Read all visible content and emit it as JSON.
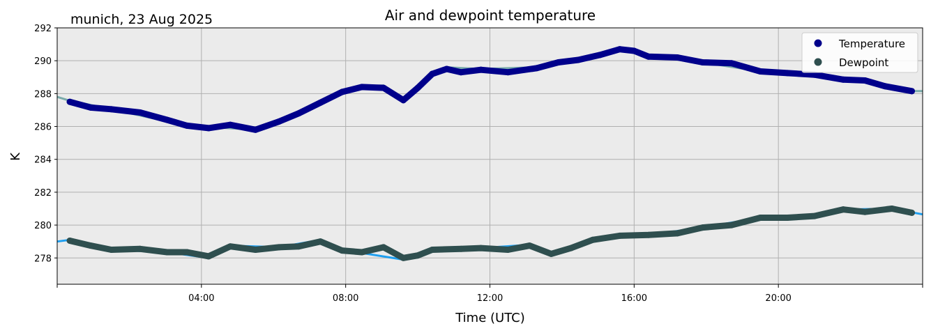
{
  "chart_data": {
    "type": "line",
    "title": "Air and dewpoint temperature",
    "subtitle": "munich, 23 Aug 2025",
    "xlabel": "Time (UTC)",
    "ylabel": "K",
    "xlim_hours": [
      0,
      24
    ],
    "ylim": [
      276.4,
      292
    ],
    "yticks": [
      278,
      280,
      282,
      284,
      286,
      288,
      290,
      292
    ],
    "xticks": [
      {
        "h": 4,
        "label": "04:00"
      },
      {
        "h": 8,
        "label": "08:00"
      },
      {
        "h": 12,
        "label": "12:00"
      },
      {
        "h": 16,
        "label": "16:00"
      },
      {
        "h": 20,
        "label": "20:00"
      }
    ],
    "grid": true,
    "background": "#ebebeb",
    "legend": {
      "placement": "top-right",
      "entries": [
        "Temperature",
        "Dewpoint"
      ]
    },
    "series": [
      {
        "name": "Temperature",
        "style": "dots",
        "color": "#00008b",
        "x": [
          0.35,
          0.93,
          1.5,
          2.3,
          3.05,
          3.6,
          4.2,
          4.8,
          5.5,
          6.15,
          6.7,
          7.3,
          7.9,
          8.45,
          9.05,
          9.6,
          10.0,
          10.4,
          10.8,
          11.2,
          11.75,
          12.5,
          13.3,
          13.9,
          14.45,
          15.05,
          15.6,
          16.0,
          16.4,
          17.2,
          17.9,
          18.7,
          19.5,
          20.25,
          21.0,
          21.8,
          22.4,
          22.95,
          23.7
        ],
        "y": [
          287.5,
          287.15,
          287.05,
          286.85,
          286.4,
          286.05,
          285.9,
          286.1,
          285.8,
          286.3,
          286.8,
          287.45,
          288.1,
          288.4,
          288.35,
          287.6,
          288.35,
          289.2,
          289.5,
          289.3,
          289.45,
          289.3,
          289.55,
          289.9,
          290.05,
          290.35,
          290.7,
          290.6,
          290.25,
          290.2,
          289.9,
          289.85,
          289.35,
          289.25,
          289.15,
          288.85,
          288.8,
          288.45,
          288.15
        ]
      },
      {
        "name": "Dewpoint",
        "style": "dots",
        "color": "#2f4f4f",
        "x": [
          0.35,
          0.93,
          1.5,
          2.3,
          3.05,
          3.6,
          4.2,
          4.8,
          5.5,
          6.15,
          6.7,
          7.3,
          7.9,
          8.45,
          9.05,
          9.6,
          10.0,
          10.4,
          11.2,
          11.75,
          12.5,
          13.1,
          13.7,
          14.25,
          14.85,
          15.6,
          16.4,
          17.2,
          17.9,
          18.7,
          19.5,
          20.25,
          21.0,
          21.8,
          22.4,
          23.15,
          23.7
        ],
        "y": [
          279.05,
          278.75,
          278.5,
          278.55,
          278.35,
          278.35,
          278.1,
          278.7,
          278.5,
          278.65,
          278.7,
          279.0,
          278.45,
          278.35,
          278.65,
          278.0,
          278.15,
          278.5,
          278.55,
          278.6,
          278.5,
          278.75,
          278.25,
          278.6,
          279.1,
          279.35,
          279.4,
          279.5,
          279.85,
          280.0,
          280.45,
          280.45,
          280.55,
          280.95,
          280.8,
          281.0,
          280.75
        ]
      },
      {
        "style": "raw-line",
        "color": "#7aabab",
        "x": [
          0,
          0.3,
          1.5,
          3.6,
          5.5,
          7.3,
          8.45,
          9.05,
          9.6,
          10.0,
          10.4,
          10.8,
          11.75,
          13.3,
          14.45,
          15.6,
          16.4,
          17.9,
          19.5,
          21.0,
          22.4,
          23.7,
          24
        ],
        "y": [
          287.8,
          287.6,
          287.05,
          286.05,
          285.8,
          287.45,
          288.45,
          288.5,
          287.5,
          288.3,
          289.3,
          289.6,
          289.5,
          289.6,
          290.1,
          290.8,
          290.25,
          289.9,
          289.35,
          289.15,
          288.8,
          288.15,
          288.15
        ]
      },
      {
        "style": "raw-line",
        "color": "#1e9ff0",
        "x": [
          0,
          0.35,
          1.5,
          3.05,
          4.2,
          4.8,
          6.15,
          7.3,
          7.9,
          8.45,
          9.6,
          10.4,
          11.75,
          13.1,
          13.7,
          14.85,
          16.4,
          17.9,
          19.5,
          21.0,
          21.8,
          23.15,
          24
        ],
        "y": [
          279.0,
          279.1,
          278.5,
          278.35,
          278.0,
          278.75,
          278.65,
          279.1,
          278.4,
          278.3,
          277.9,
          278.6,
          278.6,
          278.8,
          278.2,
          279.15,
          279.4,
          279.85,
          280.45,
          280.55,
          280.95,
          281.0,
          280.65
        ]
      }
    ]
  }
}
